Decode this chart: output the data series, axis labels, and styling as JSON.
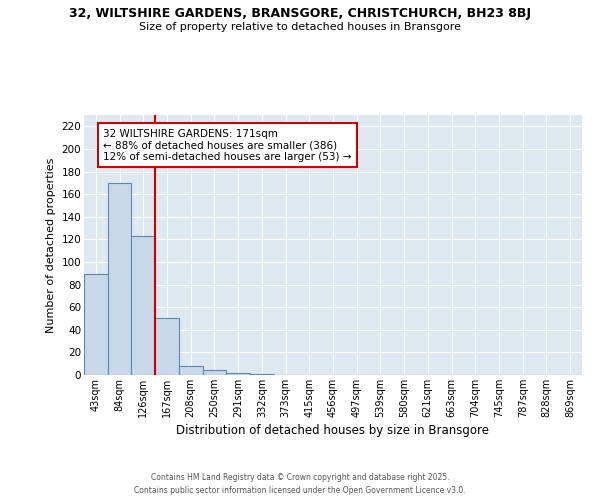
{
  "title_line1": "32, WILTSHIRE GARDENS, BRANSGORE, CHRISTCHURCH, BH23 8BJ",
  "title_line2": "Size of property relative to detached houses in Bransgore",
  "xlabel": "Distribution of detached houses by size in Bransgore",
  "ylabel": "Number of detached properties",
  "categories": [
    "43sqm",
    "84sqm",
    "126sqm",
    "167sqm",
    "208sqm",
    "250sqm",
    "291sqm",
    "332sqm",
    "373sqm",
    "415sqm",
    "456sqm",
    "497sqm",
    "539sqm",
    "580sqm",
    "621sqm",
    "663sqm",
    "704sqm",
    "745sqm",
    "787sqm",
    "828sqm",
    "869sqm"
  ],
  "values": [
    89,
    170,
    123,
    50,
    8,
    4,
    2,
    1,
    0,
    0,
    0,
    0,
    0,
    0,
    0,
    0,
    0,
    0,
    0,
    0,
    0
  ],
  "bar_color": "#c8d8ea",
  "bar_edge_color": "#5a8ab0",
  "vline_color": "#cc0000",
  "annotation_text": "32 WILTSHIRE GARDENS: 171sqm\n← 88% of detached houses are smaller (386)\n12% of semi-detached houses are larger (53) →",
  "annotation_box_color": "#ffffff",
  "annotation_box_edge": "#cc0000",
  "ylim": [
    0,
    230
  ],
  "yticks": [
    0,
    20,
    40,
    60,
    80,
    100,
    120,
    140,
    160,
    180,
    200,
    220
  ],
  "fig_background": "#ffffff",
  "plot_background": "#dde8f0",
  "grid_color": "#ffffff",
  "footer_line1": "Contains HM Land Registry data © Crown copyright and database right 2025.",
  "footer_line2": "Contains public sector information licensed under the Open Government Licence v3.0."
}
